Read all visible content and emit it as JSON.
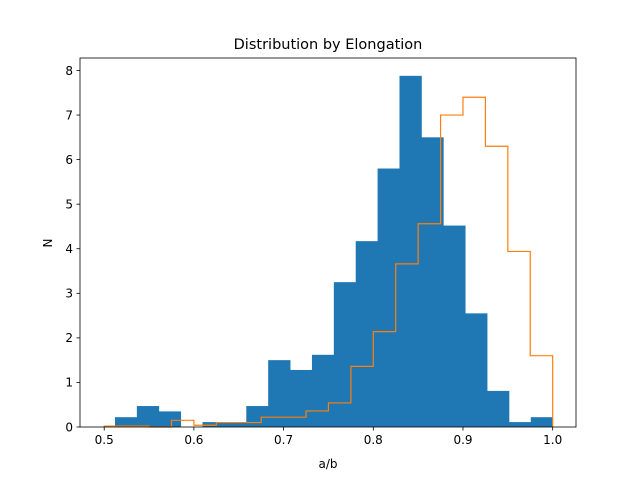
{
  "chart_data": {
    "type": "bar",
    "title": "Distribution by Elongation",
    "xlabel": "a/b",
    "ylabel": "N",
    "xlim": [
      0.473,
      1.026
    ],
    "ylim": [
      0,
      8.28
    ],
    "xticks": [
      0.5,
      0.6,
      0.7,
      0.8,
      0.9,
      1.0
    ],
    "xtick_labels": [
      "0.5",
      "0.6",
      "0.7",
      "0.8",
      "0.9",
      "1.0"
    ],
    "yticks": [
      0,
      1,
      2,
      3,
      4,
      5,
      6,
      7,
      8
    ],
    "ytick_labels": [
      "0",
      "1",
      "2",
      "3",
      "4",
      "5",
      "6",
      "7",
      "8"
    ],
    "grid": false,
    "legend": "none",
    "series": [
      {
        "style": "filled",
        "color": "#1f77b4",
        "bin_edges": [
          0.512,
          0.5364,
          0.5608,
          0.5852,
          0.6096,
          0.634,
          0.6584,
          0.6828,
          0.7072,
          0.7316,
          0.756,
          0.7804,
          0.8048,
          0.8292,
          0.8536,
          0.878,
          0.9024,
          0.9268,
          0.9512,
          0.9756,
          1.0
        ],
        "values": [
          0.22,
          0.47,
          0.35,
          0.0,
          0.11,
          0.11,
          0.47,
          1.5,
          1.28,
          1.62,
          3.25,
          4.17,
          5.8,
          7.88,
          6.5,
          4.52,
          2.55,
          0.81,
          0.11,
          0.22
        ]
      },
      {
        "style": "step",
        "color": "#ff7f0e",
        "bin_edges": [
          0.5,
          0.525,
          0.55,
          0.575,
          0.6,
          0.625,
          0.65,
          0.675,
          0.7,
          0.725,
          0.75,
          0.775,
          0.8,
          0.825,
          0.85,
          0.875,
          0.9,
          0.925,
          0.95,
          0.975,
          1.0
        ],
        "values": [
          0.02,
          0.02,
          0.0,
          0.15,
          0.04,
          0.1,
          0.1,
          0.22,
          0.22,
          0.36,
          0.54,
          1.36,
          2.14,
          3.66,
          4.56,
          7.0,
          7.4,
          6.3,
          3.94,
          1.6
        ]
      }
    ]
  }
}
